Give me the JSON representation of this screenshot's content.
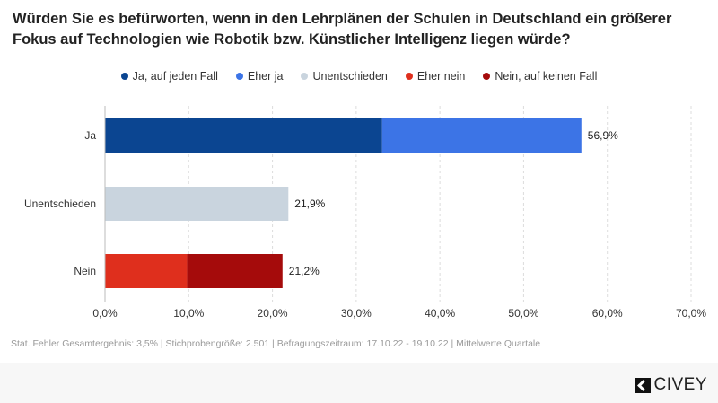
{
  "chart_data": {
    "type": "bar",
    "orientation": "horizontal",
    "stacked": true,
    "title": "Würden Sie es befürworten, wenn in den Lehrplänen der Schulen in Deutschland ein größerer Fokus auf Technologien wie Robotik bzw. Künstlicher Intelligenz liegen würde?",
    "categories": [
      "Ja",
      "Unentschieden",
      "Nein"
    ],
    "series": [
      {
        "name": "Ja, auf jeden Fall",
        "color": "#0b4591",
        "values": [
          33.1,
          0,
          0
        ]
      },
      {
        "name": "Eher ja",
        "color": "#3c74e6",
        "values": [
          23.8,
          0,
          0
        ]
      },
      {
        "name": "Unentschieden",
        "color": "#c9d4de",
        "values": [
          0,
          21.9,
          0
        ]
      },
      {
        "name": "Eher nein",
        "color": "#df2f1d",
        "values": [
          0,
          0,
          9.8
        ]
      },
      {
        "name": "Nein, auf keinen Fall",
        "color": "#a50b0b",
        "values": [
          0,
          0,
          11.4
        ]
      }
    ],
    "data_labels": [
      "56,9%",
      "21,9%",
      "21,2%"
    ],
    "xlim": [
      0,
      70
    ],
    "x_ticks": [
      "0,0%",
      "10,0%",
      "20,0%",
      "30,0%",
      "40,0%",
      "50,0%",
      "60,0%",
      "70,0%"
    ],
    "grid": "vertical dashed",
    "legend": "top"
  },
  "note": "Stat. Fehler Gesamtergebnis: 3,5% | Stichprobengröße: 2.501 | Befragungszeitraum: 17.10.22 - 19.10.22 | Mittelwerte Quartale",
  "brand": "CIVEY"
}
